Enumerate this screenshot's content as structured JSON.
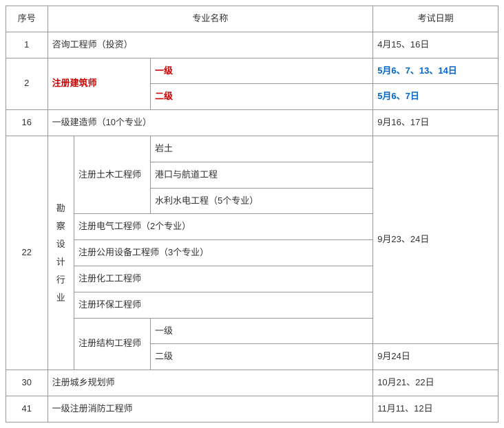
{
  "headers": {
    "idx": "序号",
    "name": "专业名称",
    "date": "考试日期"
  },
  "rows": {
    "r1": {
      "idx": "1",
      "name": "咨询工程师（投资）",
      "date": "4月15、16日"
    },
    "r2": {
      "idx": "2",
      "name": "注册建筑师",
      "lvl1": "一级",
      "date1": "5月6、7、13、14日",
      "lvl2": "二级",
      "date2": "5月6、7日"
    },
    "r16": {
      "idx": "16",
      "name": "一级建造师（10个专业）",
      "date": "9月16、17日"
    },
    "r22": {
      "idx": "22",
      "vlabel": "勘察设计行业",
      "civil": "注册土木工程师",
      "civil_a": "岩土",
      "civil_b": "港口与航道工程",
      "civil_c": "水利水电工程（5个专业）",
      "elec": "注册电气工程师（2个专业）",
      "util": "注册公用设备工程师（3个专业）",
      "chem": "注册化工工程师",
      "env": "注册环保工程师",
      "struct": "注册结构工程师",
      "struct1": "一级",
      "struct2": "二级",
      "date_main": "9月23、24日",
      "date_struct2": "9月24日"
    },
    "r30": {
      "idx": "30",
      "name": "注册城乡规划师",
      "date": "10月21、22日"
    },
    "r41": {
      "idx": "41",
      "name": "一级注册消防工程师",
      "date": "11月11、12日"
    }
  }
}
